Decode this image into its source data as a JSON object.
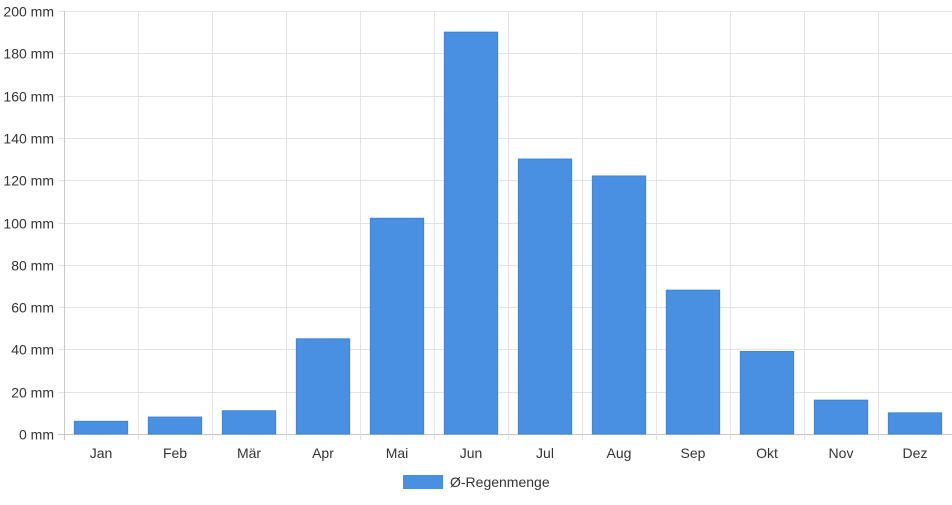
{
  "chart_data": {
    "type": "bar",
    "categories": [
      "Jan",
      "Feb",
      "Mär",
      "Apr",
      "Mai",
      "Jun",
      "Jul",
      "Aug",
      "Sep",
      "Okt",
      "Nov",
      "Dez"
    ],
    "series": [
      {
        "name": "Ø-Regenmenge",
        "color": "#4a90e2",
        "values": [
          6,
          8,
          11,
          45,
          102,
          190,
          130,
          122,
          68,
          39,
          16,
          10
        ]
      }
    ],
    "title": "",
    "xlabel": "",
    "ylabel": "",
    "ylim": [
      0,
      200
    ],
    "yticks": [
      "0 mm",
      "20 mm",
      "40 mm",
      "60 mm",
      "80 mm",
      "100 mm",
      "120 mm",
      "140 mm",
      "160 mm",
      "180 mm",
      "200 mm"
    ],
    "grid": true,
    "legend_position": "bottom"
  }
}
